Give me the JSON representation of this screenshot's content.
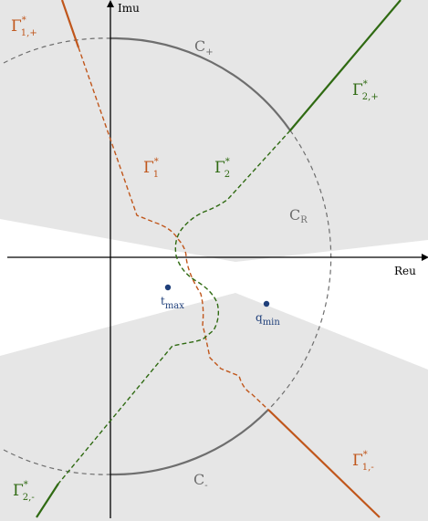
{
  "axes": {
    "x_label": "Reu",
    "y_label": "Imu"
  },
  "points": [
    {
      "main": "t",
      "sub": "max"
    },
    {
      "main": "q",
      "sub": "min"
    }
  ],
  "contour_labels": {
    "c_plus": {
      "main": "C",
      "sub": "+"
    },
    "c_minus": {
      "main": "C",
      "sub": "-"
    },
    "c_r": {
      "main": "C",
      "sub": "R"
    }
  },
  "path_labels": {
    "gamma1_plus": {
      "main": "Γ",
      "sup": "*",
      "sub": "1,+"
    },
    "gamma2_plus": {
      "main": "Γ",
      "sup": "*",
      "sub": "2,+"
    },
    "gamma1": {
      "main": "Γ",
      "sup": "*",
      "sub": "1"
    },
    "gamma2": {
      "main": "Γ",
      "sup": "*",
      "sub": "2"
    },
    "gamma1_minus": {
      "main": "Γ",
      "sup": "*",
      "sub": "1,-"
    },
    "gamma2_minus": {
      "main": "Γ",
      "sup": "*",
      "sub": "2,-"
    }
  },
  "colors": {
    "shaded_region": "#e6e6e6",
    "circle": "#6e6e6e",
    "gamma1": "#c0561b",
    "gamma2": "#2f6a12",
    "point": "#1f3f7a",
    "point_label": "#1f3f7a",
    "axis": "#000000",
    "contour_label": "#6e6e6e"
  }
}
